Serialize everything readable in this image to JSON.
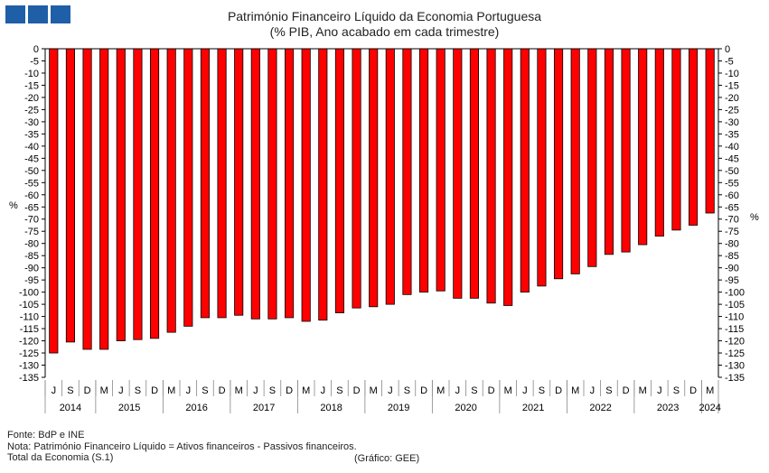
{
  "chart_data": {
    "type": "bar",
    "title": "Património Financeiro Líquido da Economia Portuguesa",
    "subtitle": "(% PIB, Ano acabado em cada trimestre)",
    "ylabel_left": "%",
    "ylabel_right": "%",
    "ylim": [
      -135,
      0
    ],
    "ytick_step": 5,
    "grid": false,
    "bar_color": "#ff0000",
    "quarters": [
      "J",
      "S",
      "D",
      "M",
      "J",
      "S",
      "D",
      "M",
      "J",
      "S",
      "D",
      "M",
      "J",
      "S",
      "D",
      "M",
      "J",
      "S",
      "D",
      "M",
      "J",
      "S",
      "D",
      "M",
      "J",
      "S",
      "D",
      "M",
      "J",
      "S",
      "D",
      "M",
      "J",
      "S",
      "D",
      "M",
      "J",
      "S",
      "D",
      "M"
    ],
    "years": [
      "2014",
      "2015",
      "2016",
      "2017",
      "2018",
      "2019",
      "2020",
      "2021",
      "2022",
      "2023",
      "2024"
    ],
    "values": [
      -125,
      -120.5,
      -123.5,
      -123.5,
      -120,
      -119.5,
      -119,
      -116.5,
      -114,
      -110.5,
      -110.5,
      -109.5,
      -111,
      -111,
      -110.5,
      -112,
      -111.5,
      -108.5,
      -106.5,
      -106,
      -105,
      -101,
      -100,
      -99.5,
      -102.5,
      -102.5,
      -104.5,
      -105.5,
      -100,
      -97.5,
      -94.5,
      -92.5,
      -89.5,
      -84.5,
      -83.5,
      -80.5,
      -77,
      -74.5,
      -72.5,
      -67.5
    ]
  },
  "footer": {
    "source": "Fonte: BdP e INE",
    "note": "Nota: Património Financeiro Líquido = Ativos financeiros - Passivos financeiros.",
    "sector": "Total da Economia (S.1)",
    "credit": "(Gráfico: GEE)"
  }
}
